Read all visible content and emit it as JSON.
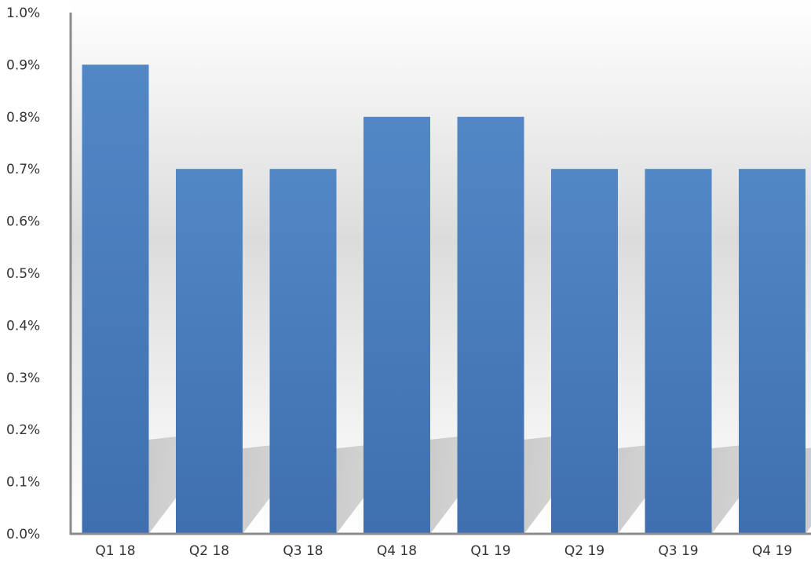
{
  "chart_data": {
    "type": "bar",
    "title": "",
    "xlabel": "",
    "ylabel": "",
    "categories": [
      "Q1 18",
      "Q2 18",
      "Q3 18",
      "Q4 18",
      "Q1 19",
      "Q2 19",
      "Q3 19",
      "Q4 19"
    ],
    "values": [
      0.9,
      0.7,
      0.7,
      0.8,
      0.8,
      0.7,
      0.7,
      0.7
    ],
    "value_format": "percent",
    "ylim": [
      0,
      1.0
    ],
    "y_ticks": [
      "0.0%",
      "0.1%",
      "0.2%",
      "0.3%",
      "0.4%",
      "0.5%",
      "0.6%",
      "0.7%",
      "0.8%",
      "0.9%",
      "1.0%"
    ],
    "grid": false,
    "legend": "none",
    "bar_color": "#4a7ebf"
  }
}
